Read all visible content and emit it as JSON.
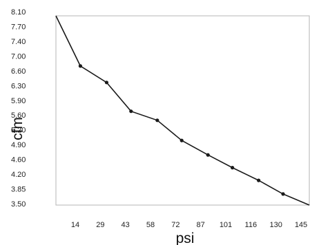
{
  "chart_data": {
    "type": "line",
    "xlabel": "psi",
    "ylabel": "cfm",
    "x_ticks": [
      "14",
      "29",
      "43",
      "58",
      "72",
      "87",
      "101",
      "116",
      "130",
      "145"
    ],
    "y_ticks": [
      "3.50",
      "3.85",
      "4.20",
      "4.60",
      "4.90",
      "5.20",
      "5.60",
      "5.90",
      "6.30",
      "6.60",
      "7.00",
      "7.40",
      "7.70",
      "8.10"
    ],
    "points": [
      {
        "x": 0,
        "y": 8.1
      },
      {
        "x": 14,
        "y": 6.88
      },
      {
        "x": 29,
        "y": 6.48
      },
      {
        "x": 43,
        "y": 5.78
      },
      {
        "x": 58,
        "y": 5.56
      },
      {
        "x": 72,
        "y": 5.07
      },
      {
        "x": 87,
        "y": 4.72
      },
      {
        "x": 101,
        "y": 4.41
      },
      {
        "x": 116,
        "y": 4.1
      },
      {
        "x": 130,
        "y": 3.77
      },
      {
        "x": 145,
        "y": 3.5
      }
    ],
    "markers": [
      false,
      true,
      true,
      true,
      true,
      true,
      true,
      true,
      true,
      true,
      false
    ],
    "xlim": [
      0,
      145
    ],
    "ylim": [
      3.5,
      8.1
    ],
    "grid": false,
    "colors": {
      "line": "#1a1a1a",
      "frame": "#b5b5b5",
      "text": "#222222"
    }
  }
}
